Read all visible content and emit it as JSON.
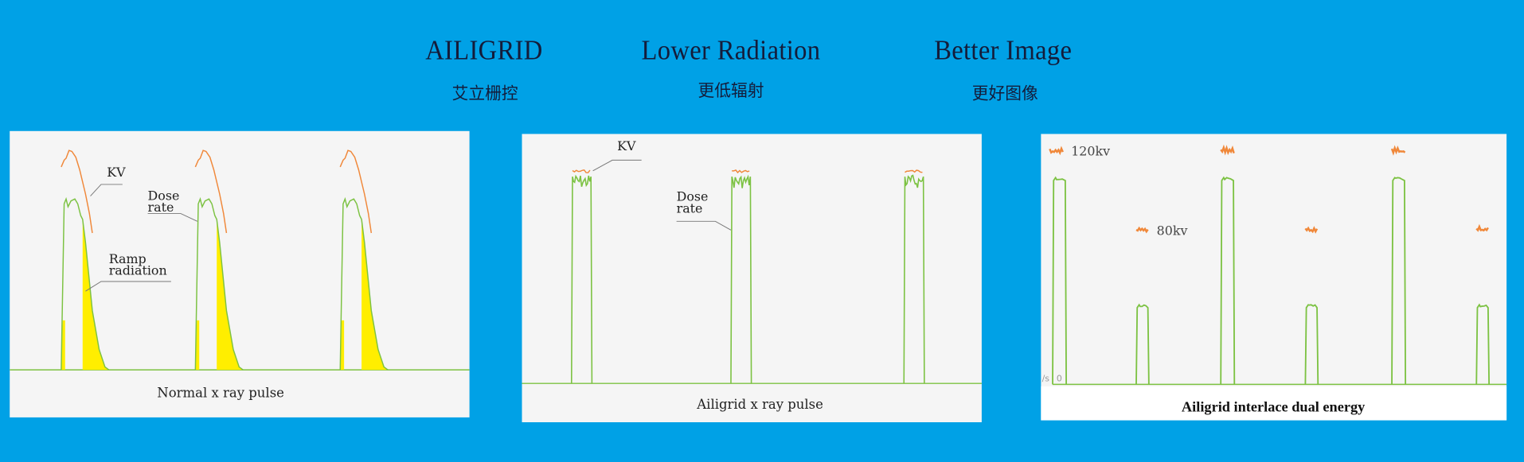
{
  "header": {
    "columns": [
      {
        "title": "AILIGRID",
        "subtitle": "艾立栅控"
      },
      {
        "title": "Lower Radiation",
        "subtitle": "更低辐射"
      },
      {
        "title": "Better Image",
        "subtitle": "更好图像"
      }
    ]
  },
  "colors": {
    "background": "#00a1e6",
    "panel": "#f5f5f5",
    "dose_rate": "#7cc242",
    "kv": "#f0883a",
    "ramp_radiation": "#ffee00"
  },
  "chart_data": [
    {
      "type": "line",
      "title": "Normal x ray pulse",
      "annotations": [
        "KV",
        "Dose rate",
        "Ramp radiation"
      ],
      "series": [
        {
          "name": "KV"
        },
        {
          "name": "Dose rate"
        }
      ],
      "pulse_count": 3
    },
    {
      "type": "line",
      "title": "Ailigrid x ray pulse",
      "annotations": [
        "KV",
        "Dose rate"
      ],
      "series": [
        {
          "name": "KV"
        },
        {
          "name": "Dose rate"
        }
      ],
      "pulse_count": 3
    },
    {
      "type": "line",
      "title": "Ailigrid interlace dual energy",
      "annotations": [
        "120kv",
        "80kv"
      ],
      "y_tick_label": "0",
      "y_axis_fragment": "/s",
      "pulse_sequence": [
        "120kv",
        "80kv",
        "120kv",
        "80kv",
        "120kv",
        "80kv"
      ]
    }
  ]
}
